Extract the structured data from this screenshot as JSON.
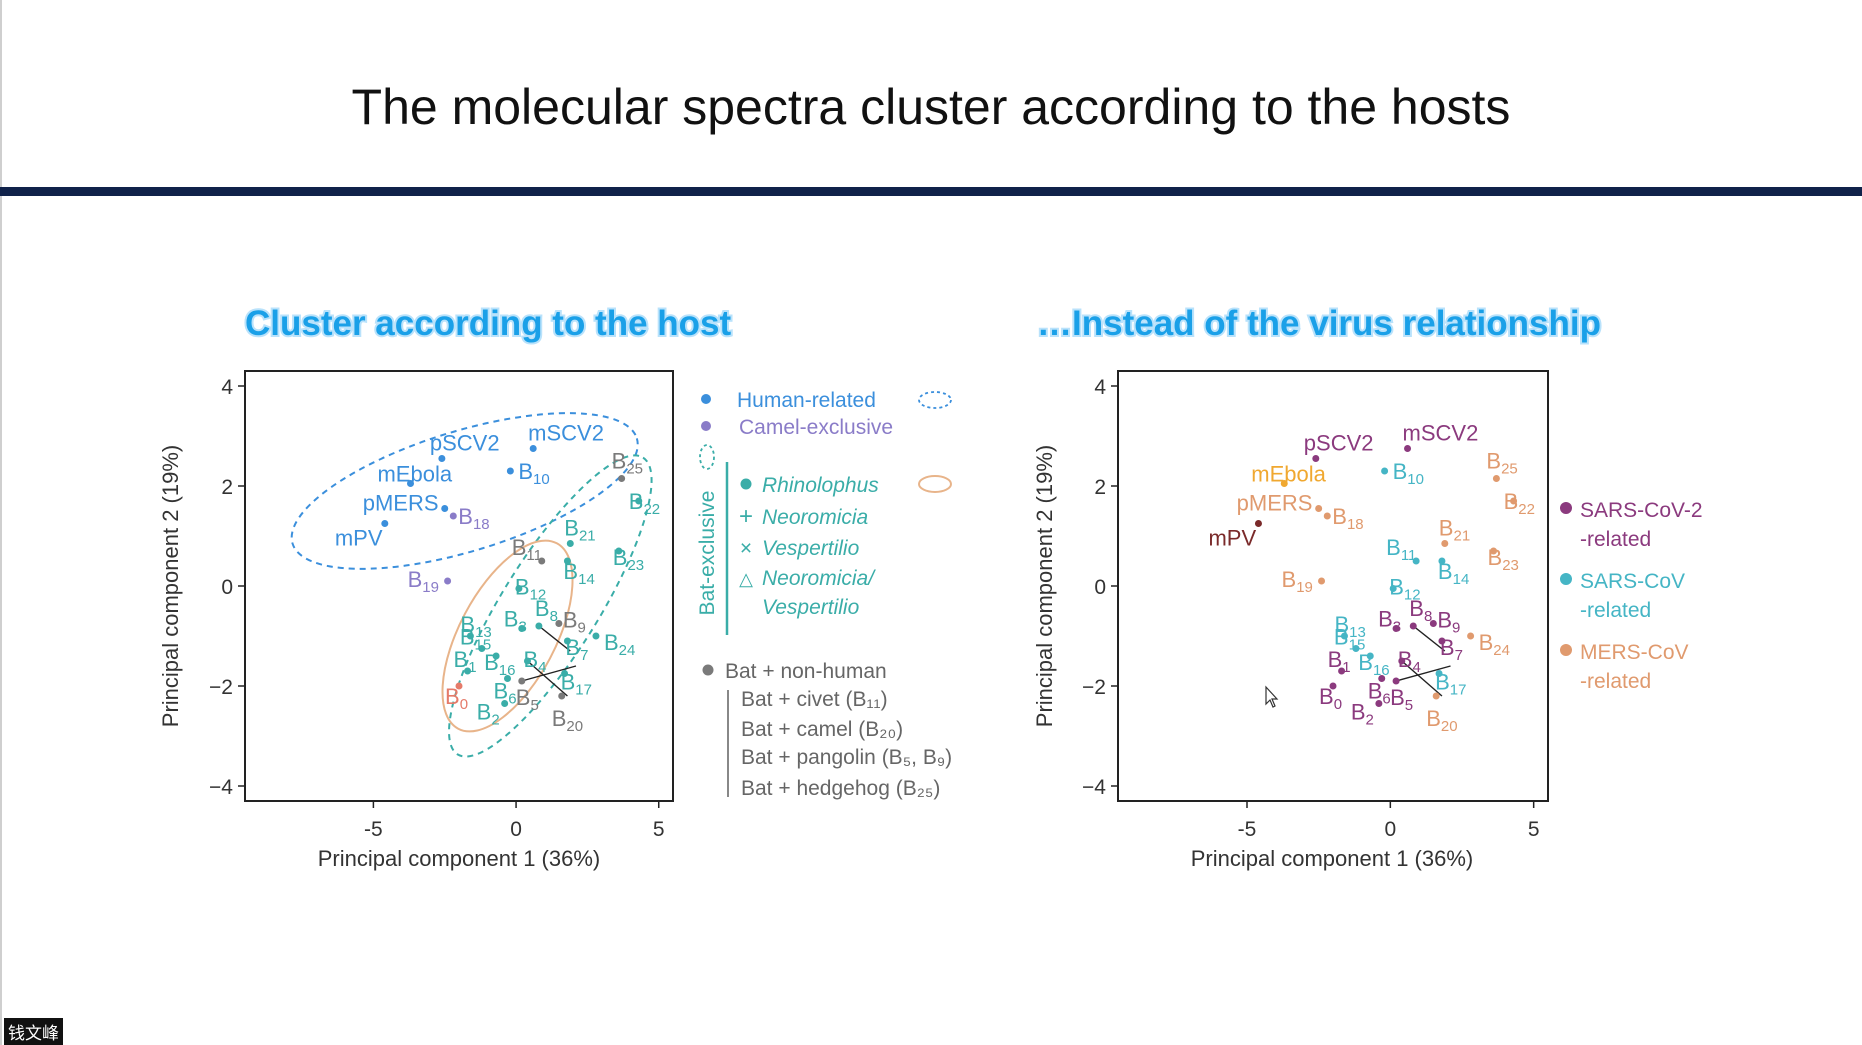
{
  "slide_title": "The molecular spectra cluster according to the hosts",
  "watermark": "钱文峰",
  "colors": {
    "human": "#3b8fdc",
    "camel": "#8a7cc8",
    "bat": "#3aada8",
    "nonhuman": "#7a7a7a",
    "b0": "#e57b6a",
    "orange_ellipse": "#e8b48a",
    "sars2": "#8b3a7e",
    "sarscov": "#45b5c5",
    "mers": "#e09a6e",
    "mpv": "#7a2a2a",
    "mebola": "#f0a830",
    "subtitle": "#1aa0e8",
    "rule": "#10224a"
  },
  "chart_data": [
    {
      "type": "scatter",
      "title": "Cluster according to the host",
      "xlabel": "Principal component 1 (36%)",
      "ylabel": "Principal component 2 (19%)",
      "xlim": [
        -9.5,
        5.5
      ],
      "ylim": [
        -4.3,
        4.3
      ],
      "xticks": [
        -5,
        0,
        5
      ],
      "yticks": [
        4,
        2,
        0,
        -2,
        -4
      ],
      "xtick_labels": [
        "-5",
        "0",
        "5"
      ],
      "ytick_labels": [
        "4",
        "2",
        "0",
        "−2",
        "−4"
      ],
      "points": [
        {
          "label": "pSCV2",
          "x": -2.6,
          "y": 2.55,
          "group": "human"
        },
        {
          "label": "mSCV2",
          "x": 0.6,
          "y": 2.75,
          "group": "human"
        },
        {
          "label": "mEbola",
          "x": -3.7,
          "y": 2.05,
          "group": "human"
        },
        {
          "label": "B10",
          "x": -0.2,
          "y": 2.3,
          "group": "human"
        },
        {
          "label": "pMERS",
          "x": -2.5,
          "y": 1.55,
          "group": "human"
        },
        {
          "label": "B18",
          "x": -2.2,
          "y": 1.4,
          "group": "camel"
        },
        {
          "label": "mPV",
          "x": -4.6,
          "y": 1.25,
          "group": "human"
        },
        {
          "label": "B19",
          "x": -2.4,
          "y": 0.1,
          "group": "camel"
        },
        {
          "label": "B25",
          "x": 3.7,
          "y": 2.15,
          "group": "nonhuman"
        },
        {
          "label": "B22",
          "x": 4.3,
          "y": 1.7,
          "group": "bat"
        },
        {
          "label": "B21",
          "x": 1.9,
          "y": 0.85,
          "group": "bat"
        },
        {
          "label": "B23",
          "x": 3.6,
          "y": 0.7,
          "group": "bat"
        },
        {
          "label": "B11",
          "x": 0.9,
          "y": 0.5,
          "group": "nonhuman"
        },
        {
          "label": "B14",
          "x": 1.8,
          "y": 0.5,
          "group": "bat"
        },
        {
          "label": "B12",
          "x": 0.1,
          "y": -0.05,
          "group": "bat"
        },
        {
          "label": "B3",
          "x": 0.2,
          "y": -0.85,
          "group": "bat"
        },
        {
          "label": "B8",
          "x": 0.8,
          "y": -0.8,
          "group": "bat"
        },
        {
          "label": "B9",
          "x": 1.5,
          "y": -0.75,
          "group": "nonhuman"
        },
        {
          "label": "B13",
          "x": -1.6,
          "y": -1.0,
          "group": "bat"
        },
        {
          "label": "B7",
          "x": 1.8,
          "y": -1.1,
          "group": "bat"
        },
        {
          "label": "B24",
          "x": 2.8,
          "y": -1.0,
          "group": "bat"
        },
        {
          "label": "B15",
          "x": -1.2,
          "y": -1.25,
          "group": "bat"
        },
        {
          "label": "B16",
          "x": -0.7,
          "y": -1.4,
          "group": "bat"
        },
        {
          "label": "B4",
          "x": 0.4,
          "y": -1.5,
          "group": "bat"
        },
        {
          "label": "B1",
          "x": -1.7,
          "y": -1.7,
          "group": "bat"
        },
        {
          "label": "B17",
          "x": 1.7,
          "y": -1.75,
          "group": "bat"
        },
        {
          "label": "B6",
          "x": -0.3,
          "y": -1.85,
          "group": "bat"
        },
        {
          "label": "B5",
          "x": 0.2,
          "y": -1.9,
          "group": "nonhuman"
        },
        {
          "label": "B0",
          "x": -2.0,
          "y": -2.0,
          "group": "b0"
        },
        {
          "label": "B20",
          "x": 1.6,
          "y": -2.2,
          "group": "nonhuman"
        },
        {
          "label": "B2",
          "x": -0.4,
          "y": -2.35,
          "group": "bat"
        }
      ],
      "legend": {
        "human": "Human-related",
        "camel": "Camel-exclusive",
        "bat_exclusive": "Bat-exclusive",
        "rhinolophus": "Rhinolophus",
        "neoromicia": "Neoromicia",
        "vespertilio": "Vespertilio",
        "neo_vesp_line1": "Neoromicia/",
        "neo_vesp_line2": "Vespertilio",
        "nonhuman": "Bat + non-human",
        "civet": "Bat + civet (B₁₁)",
        "camel_b": "Bat + camel (B₂₀)",
        "pangolin": "Bat + pangolin (B₅, B₉)",
        "hedgehog": "Bat + hedgehog (B₂₅)"
      }
    },
    {
      "type": "scatter",
      "title": "…Instead of the virus relationship",
      "xlabel": "Principal component 1 (36%)",
      "ylabel": "Principal component 2 (19%)",
      "xlim": [
        -9.5,
        5.5
      ],
      "ylim": [
        -4.3,
        4.3
      ],
      "xticks": [
        -5,
        0,
        5
      ],
      "yticks": [
        4,
        2,
        0,
        -2,
        -4
      ],
      "xtick_labels": [
        "-5",
        "0",
        "5"
      ],
      "ytick_labels": [
        "4",
        "2",
        "0",
        "−2",
        "−4"
      ],
      "points": [
        {
          "label": "pSCV2",
          "x": -2.6,
          "y": 2.55,
          "group": "sars2"
        },
        {
          "label": "mSCV2",
          "x": 0.6,
          "y": 2.75,
          "group": "sars2"
        },
        {
          "label": "mEbola",
          "x": -3.7,
          "y": 2.05,
          "group": "mebola"
        },
        {
          "label": "B10",
          "x": -0.2,
          "y": 2.3,
          "group": "sarscov"
        },
        {
          "label": "pMERS",
          "x": -2.5,
          "y": 1.55,
          "group": "mers"
        },
        {
          "label": "B18",
          "x": -2.2,
          "y": 1.4,
          "group": "mers"
        },
        {
          "label": "mPV",
          "x": -4.6,
          "y": 1.25,
          "group": "mpv"
        },
        {
          "label": "B19",
          "x": -2.4,
          "y": 0.1,
          "group": "mers"
        },
        {
          "label": "B25",
          "x": 3.7,
          "y": 2.15,
          "group": "mers"
        },
        {
          "label": "B22",
          "x": 4.3,
          "y": 1.7,
          "group": "mers"
        },
        {
          "label": "B21",
          "x": 1.9,
          "y": 0.85,
          "group": "mers"
        },
        {
          "label": "B23",
          "x": 3.6,
          "y": 0.7,
          "group": "mers"
        },
        {
          "label": "B11",
          "x": 0.9,
          "y": 0.5,
          "group": "sarscov"
        },
        {
          "label": "B14",
          "x": 1.8,
          "y": 0.5,
          "group": "sarscov"
        },
        {
          "label": "B12",
          "x": 0.1,
          "y": -0.05,
          "group": "sarscov"
        },
        {
          "label": "B3",
          "x": 0.2,
          "y": -0.85,
          "group": "sars2"
        },
        {
          "label": "B8",
          "x": 0.8,
          "y": -0.8,
          "group": "sars2"
        },
        {
          "label": "B9",
          "x": 1.5,
          "y": -0.75,
          "group": "sars2"
        },
        {
          "label": "B13",
          "x": -1.6,
          "y": -1.0,
          "group": "sarscov"
        },
        {
          "label": "B7",
          "x": 1.8,
          "y": -1.1,
          "group": "sars2"
        },
        {
          "label": "B24",
          "x": 2.8,
          "y": -1.0,
          "group": "mers"
        },
        {
          "label": "B15",
          "x": -1.2,
          "y": -1.25,
          "group": "sarscov"
        },
        {
          "label": "B16",
          "x": -0.7,
          "y": -1.4,
          "group": "sarscov"
        },
        {
          "label": "B4",
          "x": 0.4,
          "y": -1.5,
          "group": "sars2"
        },
        {
          "label": "B1",
          "x": -1.7,
          "y": -1.7,
          "group": "sars2"
        },
        {
          "label": "B17",
          "x": 1.7,
          "y": -1.75,
          "group": "sarscov"
        },
        {
          "label": "B6",
          "x": -0.3,
          "y": -1.85,
          "group": "sars2"
        },
        {
          "label": "B5",
          "x": 0.2,
          "y": -1.9,
          "group": "sars2"
        },
        {
          "label": "B0",
          "x": -2.0,
          "y": -2.0,
          "group": "sars2"
        },
        {
          "label": "B20",
          "x": 1.6,
          "y": -2.2,
          "group": "mers"
        },
        {
          "label": "B2",
          "x": -0.4,
          "y": -2.35,
          "group": "sars2"
        }
      ],
      "legend": {
        "sars2_line1": "SARS-CoV-2",
        "sars2_line2": "-related",
        "sarscov_line1": "SARS-CoV",
        "sarscov_line2": "-related",
        "mers_line1": "MERS-CoV",
        "mers_line2": "-related"
      }
    }
  ]
}
